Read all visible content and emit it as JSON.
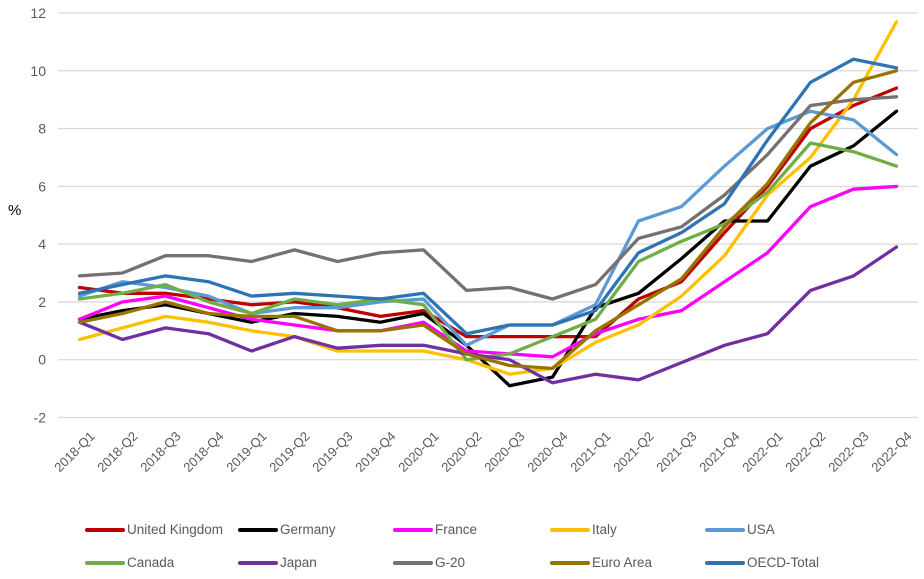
{
  "chart_data": {
    "type": "line",
    "title": "",
    "ylabel": "%",
    "xlabel": "",
    "ylim": [
      -2,
      12
    ],
    "yticks": [
      -2,
      0,
      2,
      4,
      6,
      8,
      10,
      12
    ],
    "grid": "horizontal",
    "legend_position": "bottom",
    "categories": [
      "2018-Q1",
      "2018-Q2",
      "2018-Q3",
      "2018-Q4",
      "2019-Q1",
      "2019-Q2",
      "2019-Q3",
      "2019-Q4",
      "2020-Q1",
      "2020-Q2",
      "2020-Q3",
      "2020-Q4",
      "2021-Q1",
      "2021-Q2",
      "2021-Q3",
      "2021-Q4",
      "2022-Q1",
      "2022-Q2",
      "2022-Q3",
      "2022-Q4"
    ],
    "series": [
      {
        "name": "United Kingdom",
        "color": "#C00000",
        "values": [
          2.5,
          2.3,
          2.3,
          2.1,
          1.9,
          2.0,
          1.8,
          1.5,
          1.7,
          0.8,
          0.8,
          0.8,
          0.8,
          2.1,
          2.7,
          4.4,
          6.0,
          8.0,
          8.8,
          9.4
        ]
      },
      {
        "name": "Germany",
        "color": "#000000",
        "values": [
          1.4,
          1.7,
          1.9,
          1.6,
          1.3,
          1.6,
          1.5,
          1.3,
          1.6,
          0.5,
          -0.9,
          -0.6,
          1.8,
          2.3,
          3.5,
          4.8,
          4.8,
          6.7,
          7.4,
          8.6
        ]
      },
      {
        "name": "France",
        "color": "#FF00FF",
        "values": [
          1.4,
          2.0,
          2.2,
          1.8,
          1.4,
          1.2,
          1.0,
          1.0,
          1.3,
          0.3,
          0.2,
          0.1,
          0.9,
          1.4,
          1.7,
          2.7,
          3.7,
          5.3,
          5.9,
          6.0
        ]
      },
      {
        "name": "Italy",
        "color": "#FFC000",
        "values": [
          0.7,
          1.1,
          1.5,
          1.3,
          1.0,
          0.8,
          0.3,
          0.3,
          0.3,
          0.0,
          -0.5,
          -0.3,
          0.6,
          1.2,
          2.2,
          3.6,
          5.7,
          7.0,
          9.0,
          11.7
        ]
      },
      {
        "name": "USA",
        "color": "#5B9BD5",
        "values": [
          2.2,
          2.7,
          2.5,
          2.2,
          1.6,
          1.8,
          1.8,
          2.0,
          2.1,
          0.5,
          1.2,
          1.2,
          1.9,
          4.8,
          5.3,
          6.7,
          8.0,
          8.6,
          8.3,
          7.1
        ]
      },
      {
        "name": "Canada",
        "color": "#70AD47",
        "values": [
          2.1,
          2.3,
          2.6,
          2.0,
          1.6,
          2.1,
          1.9,
          2.1,
          1.9,
          0.0,
          0.2,
          0.8,
          1.4,
          3.4,
          4.1,
          4.7,
          5.8,
          7.5,
          7.2,
          6.7
        ]
      },
      {
        "name": "Japan",
        "color": "#7030A0",
        "values": [
          1.3,
          0.7,
          1.1,
          0.9,
          0.3,
          0.8,
          0.4,
          0.5,
          0.5,
          0.2,
          0.0,
          -0.8,
          -0.5,
          -0.7,
          -0.1,
          0.5,
          0.9,
          2.4,
          2.9,
          3.9
        ]
      },
      {
        "name": "G-20",
        "color": "#767171",
        "values": [
          2.9,
          3.0,
          3.6,
          3.6,
          3.4,
          3.8,
          3.4,
          3.7,
          3.8,
          2.4,
          2.5,
          2.1,
          2.6,
          4.2,
          4.6,
          5.7,
          7.1,
          8.8,
          9.0,
          9.1
        ]
      },
      {
        "name": "Euro Area",
        "color": "#997300",
        "values": [
          1.3,
          1.6,
          2.0,
          1.6,
          1.5,
          1.5,
          1.0,
          1.0,
          1.2,
          0.2,
          -0.2,
          -0.3,
          1.0,
          1.9,
          2.8,
          4.6,
          6.1,
          8.2,
          9.6,
          10.0
        ]
      },
      {
        "name": "OECD-Total",
        "color": "#2E74B5",
        "values": [
          2.3,
          2.6,
          2.9,
          2.7,
          2.2,
          2.3,
          2.2,
          2.1,
          2.3,
          0.9,
          1.2,
          1.2,
          1.7,
          3.7,
          4.4,
          5.4,
          7.6,
          9.6,
          10.4,
          10.1
        ]
      }
    ],
    "legend_rows": [
      [
        "United Kingdom",
        "Germany",
        "France",
        "Italy",
        "USA"
      ],
      [
        "Canada",
        "Japan",
        "G-20",
        "Euro Area",
        "OECD-Total"
      ]
    ]
  },
  "colors": {
    "background": "#FFFFFF",
    "gridline": "#D9D9D9",
    "tick_label": "#595959",
    "axis_title": "#000000"
  }
}
